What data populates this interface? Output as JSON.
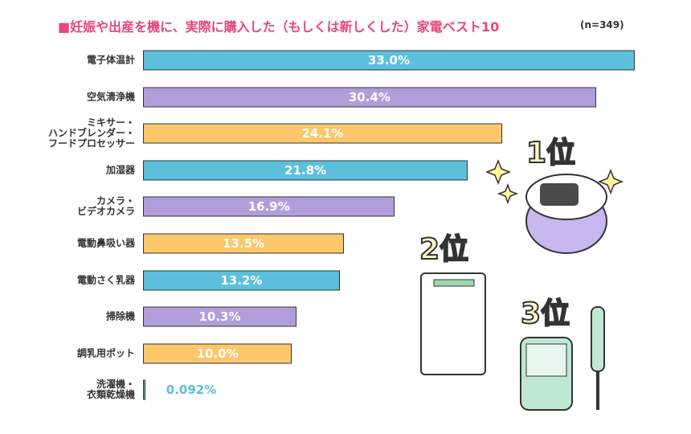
{
  "chart_data": {
    "type": "bar",
    "orientation": "horizontal",
    "title": "■妊娠や出産を機に、実際に購入した（もしくは新しくした）家電ベスト10",
    "subtitle": "(n=349)",
    "categories": [
      "電子体温計",
      "空気清浄機",
      "ミキサー・\nハンドブレンダー・\nフードプロセッサー",
      "加湿器",
      "カメラ・\nビデオカメラ",
      "電動鼻吸い器",
      "電動さく乳器",
      "掃除機",
      "調乳用ポット",
      "洗濯機・\n衣類乾燥機"
    ],
    "values": [
      33.0,
      30.4,
      24.1,
      21.8,
      16.9,
      13.5,
      13.2,
      10.3,
      10.0,
      0.092
    ],
    "value_labels": [
      "33.0%",
      "30.4%",
      "24.1%",
      "21.8%",
      "16.9%",
      "13.5%",
      "13.2%",
      "10.3%",
      "10.0%",
      "0.092%"
    ],
    "colors": [
      "#5cbfdc",
      "#b29ddb",
      "#fdc76a",
      "#5cbfdc",
      "#b29ddb",
      "#fdc76a",
      "#5cbfdc",
      "#b29ddb",
      "#fdc76a",
      "#5cbfdc"
    ],
    "annotations": [
      "1位",
      "2位",
      "3位"
    ]
  }
}
